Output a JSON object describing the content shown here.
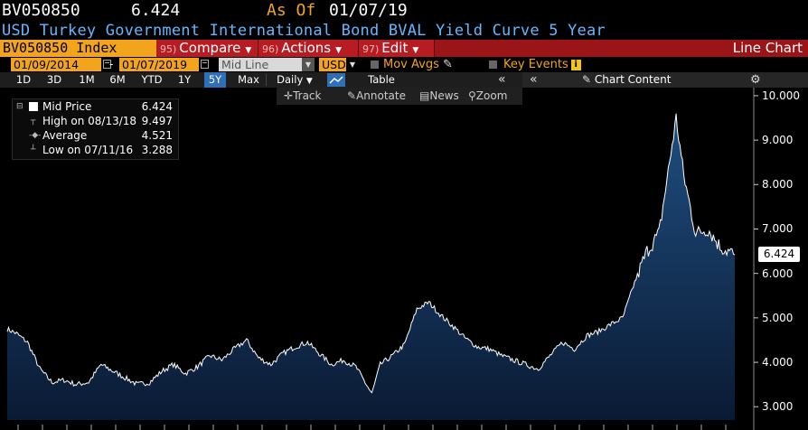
{
  "header": {
    "ticker": "BV050850",
    "last_price": "6.424",
    "as_of_label": "As Of",
    "as_of_date": "01/07/19",
    "description": "USD Turkey Government International Bond BVAL Yield Curve 5 Year"
  },
  "command_bar": {
    "security": "BV050850 Index",
    "buttons": [
      {
        "num": "95)",
        "label": "Compare"
      },
      {
        "num": "96)",
        "label": "Actions"
      },
      {
        "num": "97)",
        "label": "Edit"
      }
    ],
    "view_title": "Line Chart"
  },
  "settings": {
    "start_date": "01/09/2014",
    "end_date": "01/07/2019",
    "date_separator": "-",
    "price_field": "Mid Line",
    "currency": "USD",
    "mov_avgs_label": "Mov Avgs",
    "key_events_label": "Key Events",
    "key_events_badge": "i"
  },
  "period_bar": {
    "periods": [
      "1D",
      "3D",
      "1M",
      "6M",
      "YTD",
      "1Y",
      "5Y",
      "Max"
    ],
    "active_period": "5Y",
    "frequency": "Daily",
    "table_label": "Table",
    "chart_content_label": "Chart Content"
  },
  "chart_toolbar": {
    "track": "Track",
    "annotate": "Annotate",
    "news": "News",
    "zoom": "Zoom"
  },
  "legend": {
    "rows": [
      {
        "label": "Mid Price",
        "value": "6.424"
      },
      {
        "label": "High on 08/13/18",
        "value": "9.497"
      },
      {
        "label": "Average",
        "value": "4.521"
      },
      {
        "label": "Low on 07/11/16",
        "value": "3.288"
      }
    ]
  },
  "last_value_tag": "6.424",
  "colors": {
    "fill_top": "#1f4e80",
    "fill_bottom": "#0a1a33",
    "line": "#ffffff",
    "accent_orange": "#f2a41d",
    "command_red": "#9b1418",
    "description_blue": "#63b7ff"
  },
  "chart_data": {
    "type": "area",
    "title": "USD Turkey Government International Bond BVAL Yield Curve 5 Year",
    "series": [
      {
        "name": "Mid Price",
        "x": [
          "2014-01-09",
          "2014-02-01",
          "2014-03-01",
          "2014-04-01",
          "2014-05-01",
          "2014-06-01",
          "2014-07-01",
          "2014-08-01",
          "2014-09-01",
          "2014-10-01",
          "2014-11-01",
          "2014-12-01",
          "2015-01-01",
          "2015-02-01",
          "2015-03-01",
          "2015-04-01",
          "2015-05-01",
          "2015-06-01",
          "2015-07-01",
          "2015-08-01",
          "2015-09-01",
          "2015-10-01",
          "2015-11-01",
          "2015-12-01",
          "2016-01-01",
          "2016-02-01",
          "2016-03-01",
          "2016-04-01",
          "2016-05-01",
          "2016-06-01",
          "2016-07-11",
          "2016-08-01",
          "2016-09-01",
          "2016-10-01",
          "2016-11-01",
          "2016-12-01",
          "2017-01-01",
          "2017-02-01",
          "2017-03-01",
          "2017-04-01",
          "2017-05-01",
          "2017-06-01",
          "2017-07-01",
          "2017-08-01",
          "2017-09-01",
          "2017-10-01",
          "2017-11-01",
          "2017-12-01",
          "2018-01-01",
          "2018-02-01",
          "2018-03-01",
          "2018-04-01",
          "2018-05-01",
          "2018-06-01",
          "2018-07-01",
          "2018-08-13",
          "2018-09-01",
          "2018-10-01",
          "2018-11-01",
          "2018-12-01",
          "2019-01-07"
        ],
        "values": [
          4.75,
          4.65,
          4.45,
          3.85,
          3.55,
          3.6,
          3.5,
          3.55,
          3.95,
          3.8,
          3.65,
          3.5,
          3.55,
          3.8,
          3.95,
          3.75,
          3.9,
          4.15,
          4.05,
          4.3,
          4.5,
          4.1,
          3.95,
          4.2,
          4.35,
          4.45,
          4.2,
          3.95,
          4.05,
          3.9,
          3.29,
          3.95,
          4.15,
          4.4,
          5.2,
          5.35,
          5.05,
          4.8,
          4.55,
          4.35,
          4.3,
          4.15,
          4.05,
          3.95,
          3.85,
          4.15,
          4.45,
          4.3,
          4.6,
          4.7,
          4.85,
          5.0,
          5.8,
          6.5,
          6.9,
          9.5,
          8.2,
          6.9,
          7.0,
          6.6,
          6.42
        ]
      }
    ],
    "y_axis_side": "right",
    "ylim": [
      2.7,
      10.1
    ],
    "yticks": [
      "3.000",
      "4.000",
      "5.000",
      "6.000",
      "7.000",
      "8.000",
      "9.000",
      "10.000"
    ],
    "grid": false,
    "legend_position": "top-left"
  }
}
